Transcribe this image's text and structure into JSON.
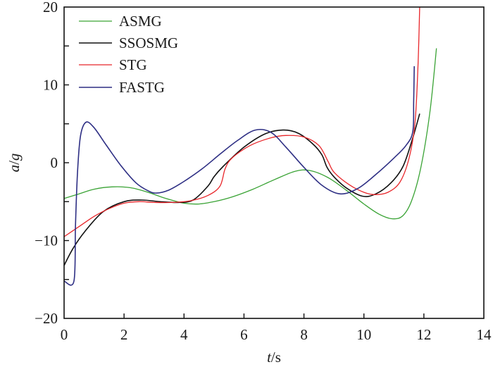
{
  "chart_data": {
    "type": "line",
    "title": "",
    "xlabel_italic": "t",
    "xlabel_unit": "/s",
    "ylabel_italic_a": "a",
    "ylabel_sep": "/",
    "ylabel_italic_g": "g",
    "xlim": [
      0,
      14
    ],
    "ylim": [
      -20,
      20
    ],
    "xticks": [
      0,
      2,
      4,
      6,
      8,
      10,
      12,
      14
    ],
    "xtick_labels": [
      "0",
      "2",
      "4",
      "6",
      "8",
      "10",
      "12",
      "14"
    ],
    "yticks_major": [
      -20,
      -10,
      0,
      10,
      20
    ],
    "ytick_labels": [
      "−20",
      "−10",
      "0",
      "10",
      "20"
    ],
    "yticks_minor": [
      -15,
      -5,
      5,
      15
    ],
    "grid": false,
    "legend_position": "top-left",
    "series": [
      {
        "name": "ASMG",
        "color": "#3aa335",
        "x": [
          0,
          0.5,
          1.0,
          1.6,
          2.2,
          2.8,
          3.4,
          4.0,
          4.5,
          5.0,
          5.6,
          6.3,
          7.0,
          7.7,
          8.2,
          8.8,
          9.4,
          10.0,
          10.5,
          10.95,
          11.3,
          11.6,
          11.9,
          12.2,
          12.42
        ],
        "y": [
          -4.6,
          -4.0,
          -3.4,
          -3.1,
          -3.2,
          -3.8,
          -4.6,
          -5.2,
          -5.3,
          -5.0,
          -4.4,
          -3.4,
          -2.2,
          -1.1,
          -1.0,
          -1.9,
          -3.5,
          -5.3,
          -6.6,
          -7.2,
          -6.8,
          -4.8,
          -0.6,
          6.5,
          14.7
        ]
      },
      {
        "name": "SSOSMG",
        "color": "#111111",
        "x": [
          0,
          0.3,
          0.7,
          1.3,
          2.0,
          2.6,
          3.2,
          3.8,
          4.3,
          4.8,
          5.0,
          5.3,
          6.0,
          6.7,
          7.3,
          7.8,
          8.3,
          8.6,
          8.77,
          9.0,
          9.4,
          9.95,
          10.4,
          10.9,
          11.3,
          11.6,
          11.86
        ],
        "y": [
          -13.2,
          -11.0,
          -8.8,
          -6.3,
          -5.0,
          -4.8,
          -5.0,
          -5.1,
          -4.8,
          -3.0,
          -1.8,
          -0.5,
          2.0,
          3.7,
          4.2,
          3.8,
          2.4,
          1.0,
          -0.6,
          -1.8,
          -3.2,
          -4.3,
          -4.0,
          -2.6,
          -0.5,
          2.8,
          6.3
        ]
      },
      {
        "name": "STG",
        "color": "#e8262a",
        "x": [
          0,
          0.5,
          1.0,
          1.5,
          2.0,
          2.5,
          3.0,
          3.6,
          4.2,
          4.8,
          5.2,
          5.37,
          5.6,
          6.2,
          6.9,
          7.4,
          8.0,
          8.5,
          8.8,
          9.0,
          9.5,
          10.0,
          10.37,
          10.8,
          11.2,
          11.5,
          11.7,
          11.8,
          11.86
        ],
        "y": [
          -9.5,
          -8.2,
          -6.9,
          -5.9,
          -5.2,
          -5.0,
          -5.1,
          -5.1,
          -4.9,
          -4.2,
          -3.0,
          -0.8,
          0.6,
          2.2,
          3.2,
          3.5,
          3.3,
          2.2,
          0.2,
          -1.2,
          -2.8,
          -3.8,
          -4.1,
          -3.8,
          -2.5,
          0.5,
          5.0,
          12.0,
          20.0
        ]
      },
      {
        "name": "FASTG",
        "color": "#2e2f84",
        "x": [
          0,
          0.33,
          0.38,
          0.45,
          0.55,
          0.73,
          1.0,
          1.4,
          1.9,
          2.4,
          2.8,
          3.08,
          3.5,
          4.0,
          4.6,
          5.2,
          5.8,
          6.38,
          6.9,
          7.4,
          8.0,
          8.6,
          9.2,
          9.8,
          10.4,
          11.0,
          11.4,
          11.63,
          11.66,
          11.68
        ],
        "y": [
          -15.2,
          -15.2,
          -8.0,
          -1.0,
          3.5,
          5.2,
          4.5,
          2.3,
          -0.4,
          -2.6,
          -3.6,
          -3.9,
          -3.5,
          -2.4,
          -0.8,
          1.1,
          2.9,
          4.2,
          3.9,
          2.0,
          -0.6,
          -2.9,
          -4.0,
          -3.3,
          -1.5,
          0.6,
          2.2,
          4.0,
          8.0,
          12.4
        ]
      }
    ]
  }
}
